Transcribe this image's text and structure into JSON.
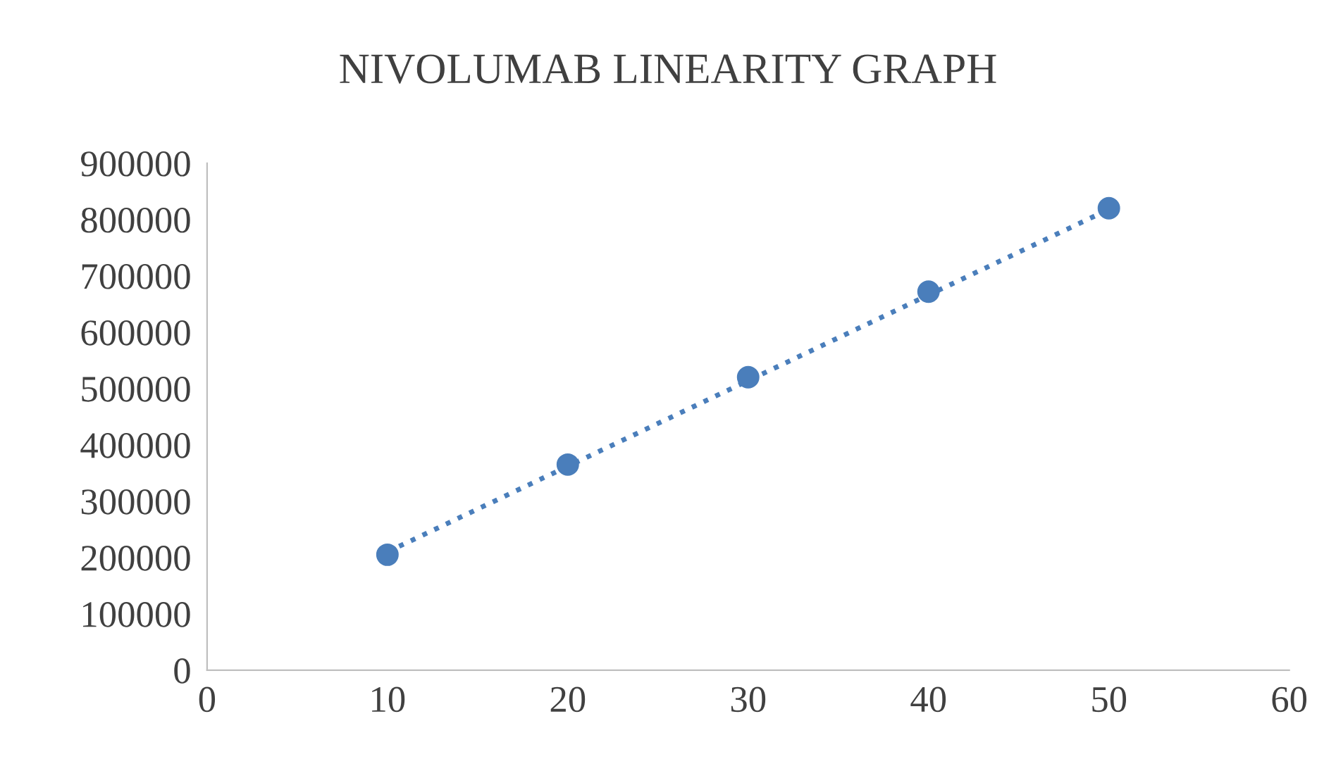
{
  "chart_data": {
    "type": "scatter",
    "title": "NIVOLUMAB LINEARITY GRAPH",
    "x": [
      10,
      20,
      30,
      40,
      50
    ],
    "series": [
      {
        "color": "#4a7ebb",
        "values": [
          205000,
          365000,
          520000,
          672000,
          820000
        ],
        "marker": "circle"
      },
      {
        "type": "line",
        "color": "#4a7ebb",
        "x": [
          10,
          50
        ],
        "values": [
          210000,
          818000
        ],
        "line_style": "dotted"
      }
    ],
    "xlim": [
      0,
      60
    ],
    "xticks": [
      0,
      10,
      20,
      30,
      40,
      50,
      60
    ],
    "ylim": [
      0,
      900000
    ],
    "yticks": [
      0,
      100000,
      200000,
      300000,
      400000,
      500000,
      600000,
      700000,
      800000,
      900000
    ],
    "grid": false,
    "legend": false
  }
}
